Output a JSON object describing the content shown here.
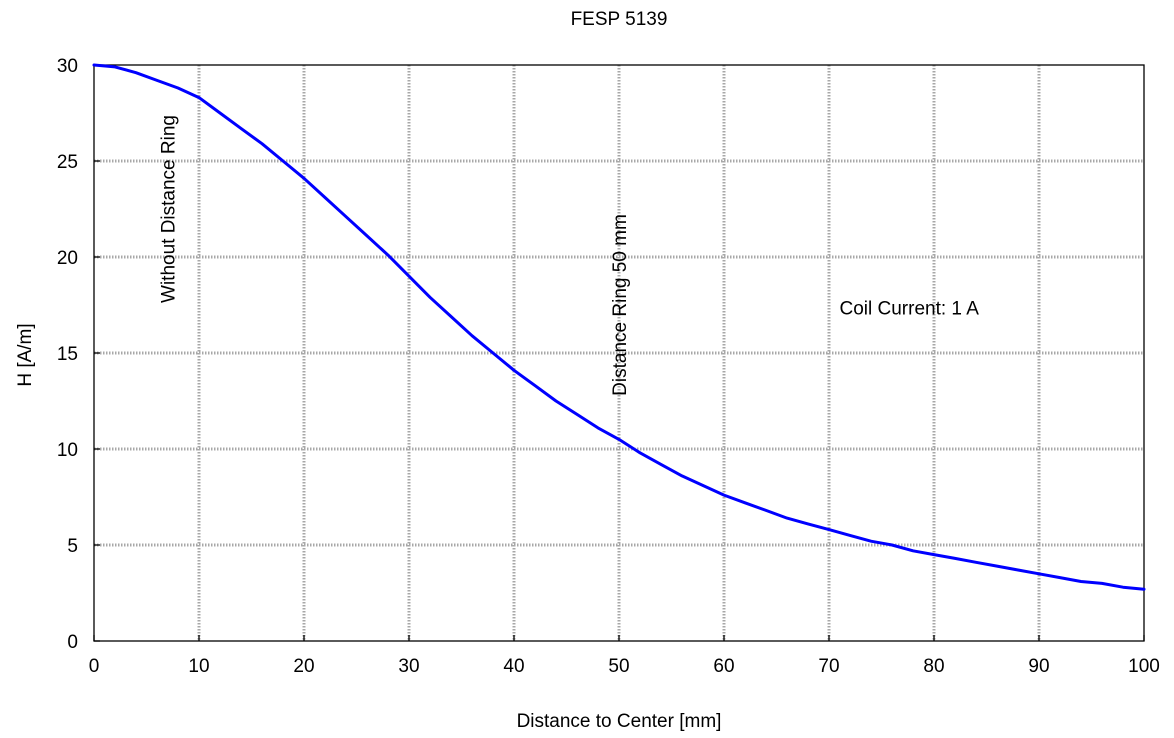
{
  "chart_data": {
    "type": "line",
    "title": "FESP 5139",
    "xlabel": "Distance to Center [mm]",
    "ylabel": "H [A/m]",
    "xlim": [
      0,
      100
    ],
    "ylim": [
      0,
      30
    ],
    "xticks": [
      0,
      10,
      20,
      30,
      40,
      50,
      60,
      70,
      80,
      90,
      100
    ],
    "yticks": [
      0,
      5,
      10,
      15,
      20,
      25,
      30
    ],
    "grid": true,
    "series": [
      {
        "color": "#0000ff",
        "x": [
          0,
          2,
          4,
          6,
          8,
          10,
          12,
          14,
          16,
          18,
          20,
          22,
          24,
          26,
          28,
          30,
          32,
          34,
          36,
          38,
          40,
          42,
          44,
          46,
          48,
          50,
          52,
          54,
          56,
          58,
          60,
          62,
          64,
          66,
          68,
          70,
          72,
          74,
          76,
          78,
          80,
          82,
          84,
          86,
          88,
          90,
          92,
          94,
          96,
          98,
          100
        ],
        "y": [
          30,
          29.9,
          29.6,
          29.2,
          28.8,
          28.3,
          27.5,
          26.7,
          25.9,
          25.0,
          24.1,
          23.1,
          22.1,
          21.1,
          20.1,
          19.0,
          17.9,
          16.9,
          15.9,
          15.0,
          14.1,
          13.3,
          12.5,
          11.8,
          11.1,
          10.5,
          9.8,
          9.2,
          8.6,
          8.1,
          7.6,
          7.2,
          6.8,
          6.4,
          6.1,
          5.8,
          5.5,
          5.2,
          5.0,
          4.7,
          4.5,
          4.3,
          4.1,
          3.9,
          3.7,
          3.5,
          3.3,
          3.1,
          3.0,
          2.8,
          2.7
        ]
      }
    ],
    "annotations": [
      {
        "text": "Without Distance Ring",
        "x": 7,
        "y": 22.5,
        "rotation": -90
      },
      {
        "text": "Distance Ring 50 mm",
        "x": 50,
        "y": 17.5,
        "rotation": -90
      },
      {
        "text": "Coil Current: 1 A",
        "x": 71,
        "y": 17,
        "rotation": 0
      }
    ]
  }
}
